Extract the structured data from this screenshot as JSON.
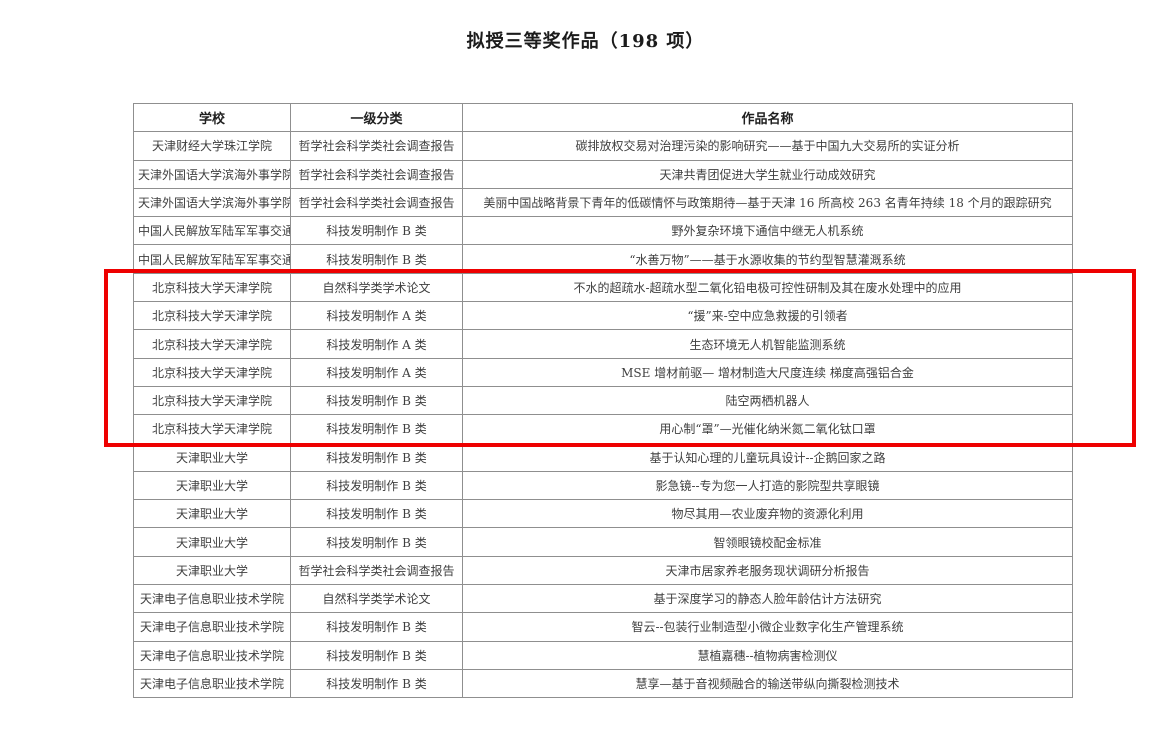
{
  "title": "拟授三等奖作品（198 项）",
  "table": {
    "headers": {
      "school": "学校",
      "category": "一级分类",
      "work": "作品名称"
    },
    "rows": [
      {
        "school": "天津财经大学珠江学院",
        "category": "哲学社会科学类社会调查报告",
        "work": "碳排放权交易对治理污染的影响研究——基于中国九大交易所的实证分析"
      },
      {
        "school": "天津外国语大学滨海外事学院",
        "category": "哲学社会科学类社会调查报告",
        "work": "天津共青团促进大学生就业行动成效研究"
      },
      {
        "school": "天津外国语大学滨海外事学院",
        "category": "哲学社会科学类社会调查报告",
        "work": "美丽中国战略背景下青年的低碳情怀与政策期待—基于天津 16 所高校 263 名青年持续 18 个月的跟踪研究"
      },
      {
        "school": "中国人民解放军陆军军事交通学院",
        "category": "科技发明制作 B 类",
        "work": "野外复杂环境下通信中继无人机系统"
      },
      {
        "school": "中国人民解放军陆军军事交通学院",
        "category": "科技发明制作 B 类",
        "work": "“水善万物”——基于水源收集的节约型智慧灌溉系统"
      },
      {
        "school": "北京科技大学天津学院",
        "category": "自然科学类学术论文",
        "work": "不水的超疏水-超疏水型二氧化铅电极可控性研制及其在废水处理中的应用"
      },
      {
        "school": "北京科技大学天津学院",
        "category": "科技发明制作 A 类",
        "work": "“援”来-空中应急救援的引领者"
      },
      {
        "school": "北京科技大学天津学院",
        "category": "科技发明制作 A 类",
        "work": "生态环境无人机智能监测系统"
      },
      {
        "school": "北京科技大学天津学院",
        "category": "科技发明制作 A 类",
        "work": "MSE 增材前驱— 增材制造大尺度连续 梯度高强铝合金"
      },
      {
        "school": "北京科技大学天津学院",
        "category": "科技发明制作 B 类",
        "work": "陆空两栖机器人"
      },
      {
        "school": "北京科技大学天津学院",
        "category": "科技发明制作 B 类",
        "work": "用心制“罩”—光催化纳米氮二氧化钛口罩"
      },
      {
        "school": "天津职业大学",
        "category": "科技发明制作 B 类",
        "work": "基于认知心理的儿童玩具设计--企鹅回家之路"
      },
      {
        "school": "天津职业大学",
        "category": "科技发明制作 B 类",
        "work": "影急镜--专为您一人打造的影院型共享眼镜"
      },
      {
        "school": "天津职业大学",
        "category": "科技发明制作 B 类",
        "work": "物尽其用—农业废弃物的资源化利用"
      },
      {
        "school": "天津职业大学",
        "category": "科技发明制作 B 类",
        "work": "智领眼镜校配金标准"
      },
      {
        "school": "天津职业大学",
        "category": "哲学社会科学类社会调查报告",
        "work": "天津市居家养老服务现状调研分析报告"
      },
      {
        "school": "天津电子信息职业技术学院",
        "category": "自然科学类学术论文",
        "work": "基于深度学习的静态人脸年龄估计方法研究"
      },
      {
        "school": "天津电子信息职业技术学院",
        "category": "科技发明制作 B 类",
        "work": "智云--包装行业制造型小微企业数字化生产管理系统"
      },
      {
        "school": "天津电子信息职业技术学院",
        "category": "科技发明制作 B 类",
        "work": "慧植嘉穗--植物病害检测仪"
      },
      {
        "school": "天津电子信息职业技术学院",
        "category": "科技发明制作 B 类",
        "work": "慧享—基于音视频融合的输送带纵向撕裂检测技术"
      }
    ]
  },
  "highlight": {
    "color": "#ee0000",
    "first_row": 6,
    "last_row": 11
  },
  "colors": {
    "table_border": "#8f8f8f",
    "text": "#3f3f3f",
    "background": "#ffffff"
  }
}
